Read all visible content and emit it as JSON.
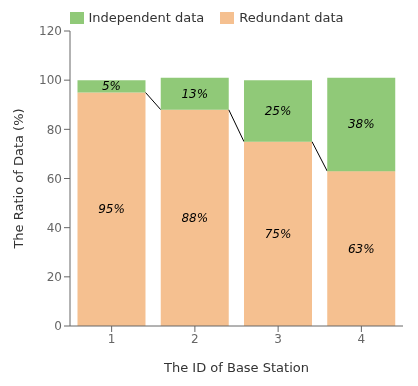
{
  "chart_data": {
    "type": "bar",
    "stacked": true,
    "data_labels": true,
    "grid": false,
    "legend": "top",
    "xlabel": "The ID of  Base Station",
    "ylabel": "The Ratio of Data (%)",
    "categories": [
      "1",
      "2",
      "3",
      "4"
    ],
    "series": [
      {
        "name": "Redundant data",
        "color": "#F5C090",
        "values": [
          95,
          88,
          75,
          63
        ],
        "value_labels": [
          "95%",
          "88%",
          "75%",
          "63%"
        ]
      },
      {
        "name": "Independent data",
        "color": "#90C978",
        "values": [
          5,
          13,
          25,
          38
        ],
        "value_labels": [
          "5%",
          "13%",
          "25%",
          "38%"
        ]
      }
    ],
    "ylim": [
      0,
      120
    ],
    "yticks": [
      0,
      20,
      40,
      60,
      80,
      100,
      120
    ]
  }
}
